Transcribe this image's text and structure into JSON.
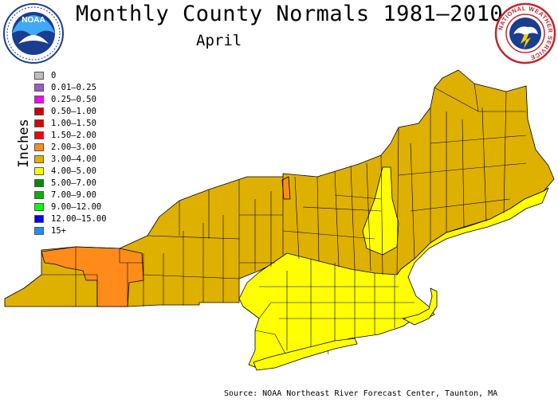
{
  "header": {
    "title": "Monthly County Normals 1981–2010",
    "subtitle": "April"
  },
  "logos": {
    "noaa_text": "NOAA",
    "nws_ring": "NATIONAL WEATHER SERVICE"
  },
  "legend": {
    "units": "Inches",
    "items": [
      {
        "label": "0",
        "color": "#bebebe"
      },
      {
        "label": "0.01–0.25",
        "color": "#9a5ccd"
      },
      {
        "label": "0.25–0.50",
        "color": "#ff00ff"
      },
      {
        "label": "0.50–1.00",
        "color": "#cd0000"
      },
      {
        "label": "1.00–1.50",
        "color": "#e00000"
      },
      {
        "label": "1.50–2.00",
        "color": "#ff0000"
      },
      {
        "label": "2.00–3.00",
        "color": "#ff8c1a"
      },
      {
        "label": "3.00–4.00",
        "color": "#deb000"
      },
      {
        "label": "4.00–5.00",
        "color": "#ffff00"
      },
      {
        "label": "5.00–7.00",
        "color": "#008b00"
      },
      {
        "label": "7.00–9.00",
        "color": "#00b400"
      },
      {
        "label": "9.00–12.00",
        "color": "#00ff00"
      },
      {
        "label": "12.00–15.00",
        "color": "#0000ee"
      },
      {
        "label": "15+",
        "color": "#1e90ff"
      }
    ]
  },
  "source": "Source: NOAA Northeast River Forecast Center, Taunton, MA"
}
